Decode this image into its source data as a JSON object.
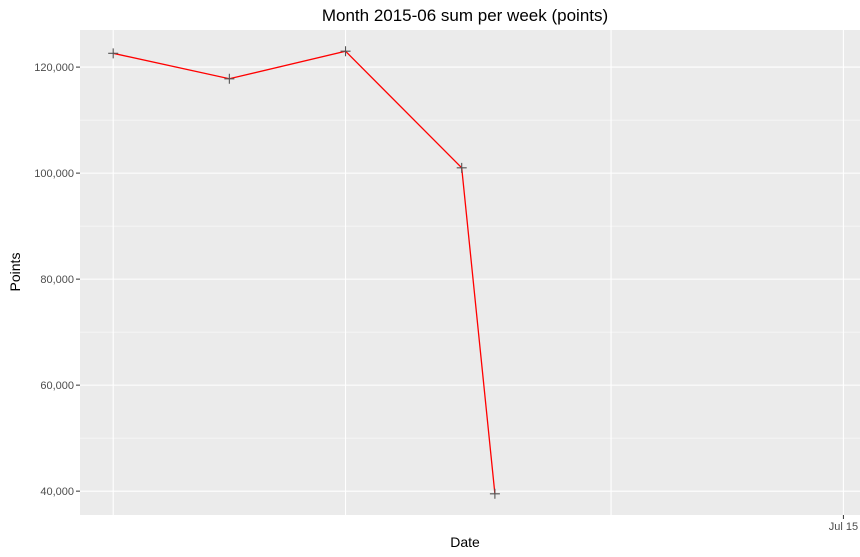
{
  "chart_data": {
    "type": "line",
    "title": "Month 2015-06 sum per week (points)",
    "xlabel": "Date",
    "ylabel": "Points",
    "x": [
      "2015-06-01",
      "2015-06-08",
      "2015-06-15",
      "2015-06-22",
      "2015-06-24"
    ],
    "series": [
      {
        "values": [
          122600,
          117800,
          123000,
          101000,
          39500
        ],
        "color": "#ff0000",
        "marker": "plus",
        "marker_color": "#555555"
      }
    ],
    "x_tick_labels": [
      {
        "date": "2015-07-15",
        "label": "Jul 15"
      }
    ],
    "x_major_gridlines": [
      "2015-05-16",
      "2015-06-01",
      "2015-06-15",
      "2015-07-01",
      "2015-07-15"
    ],
    "xlim": [
      "2015-05-30",
      "2015-07-16"
    ],
    "y_ticks": [
      40000,
      60000,
      80000,
      100000,
      120000
    ],
    "y_tick_labels": [
      "40,000",
      "60,000",
      "80,000",
      "100,000",
      "120,000"
    ],
    "ylim": [
      35500,
      127000
    ],
    "grid": true,
    "panel_background": "#ebebeb",
    "gridline_color": "#ffffff"
  }
}
